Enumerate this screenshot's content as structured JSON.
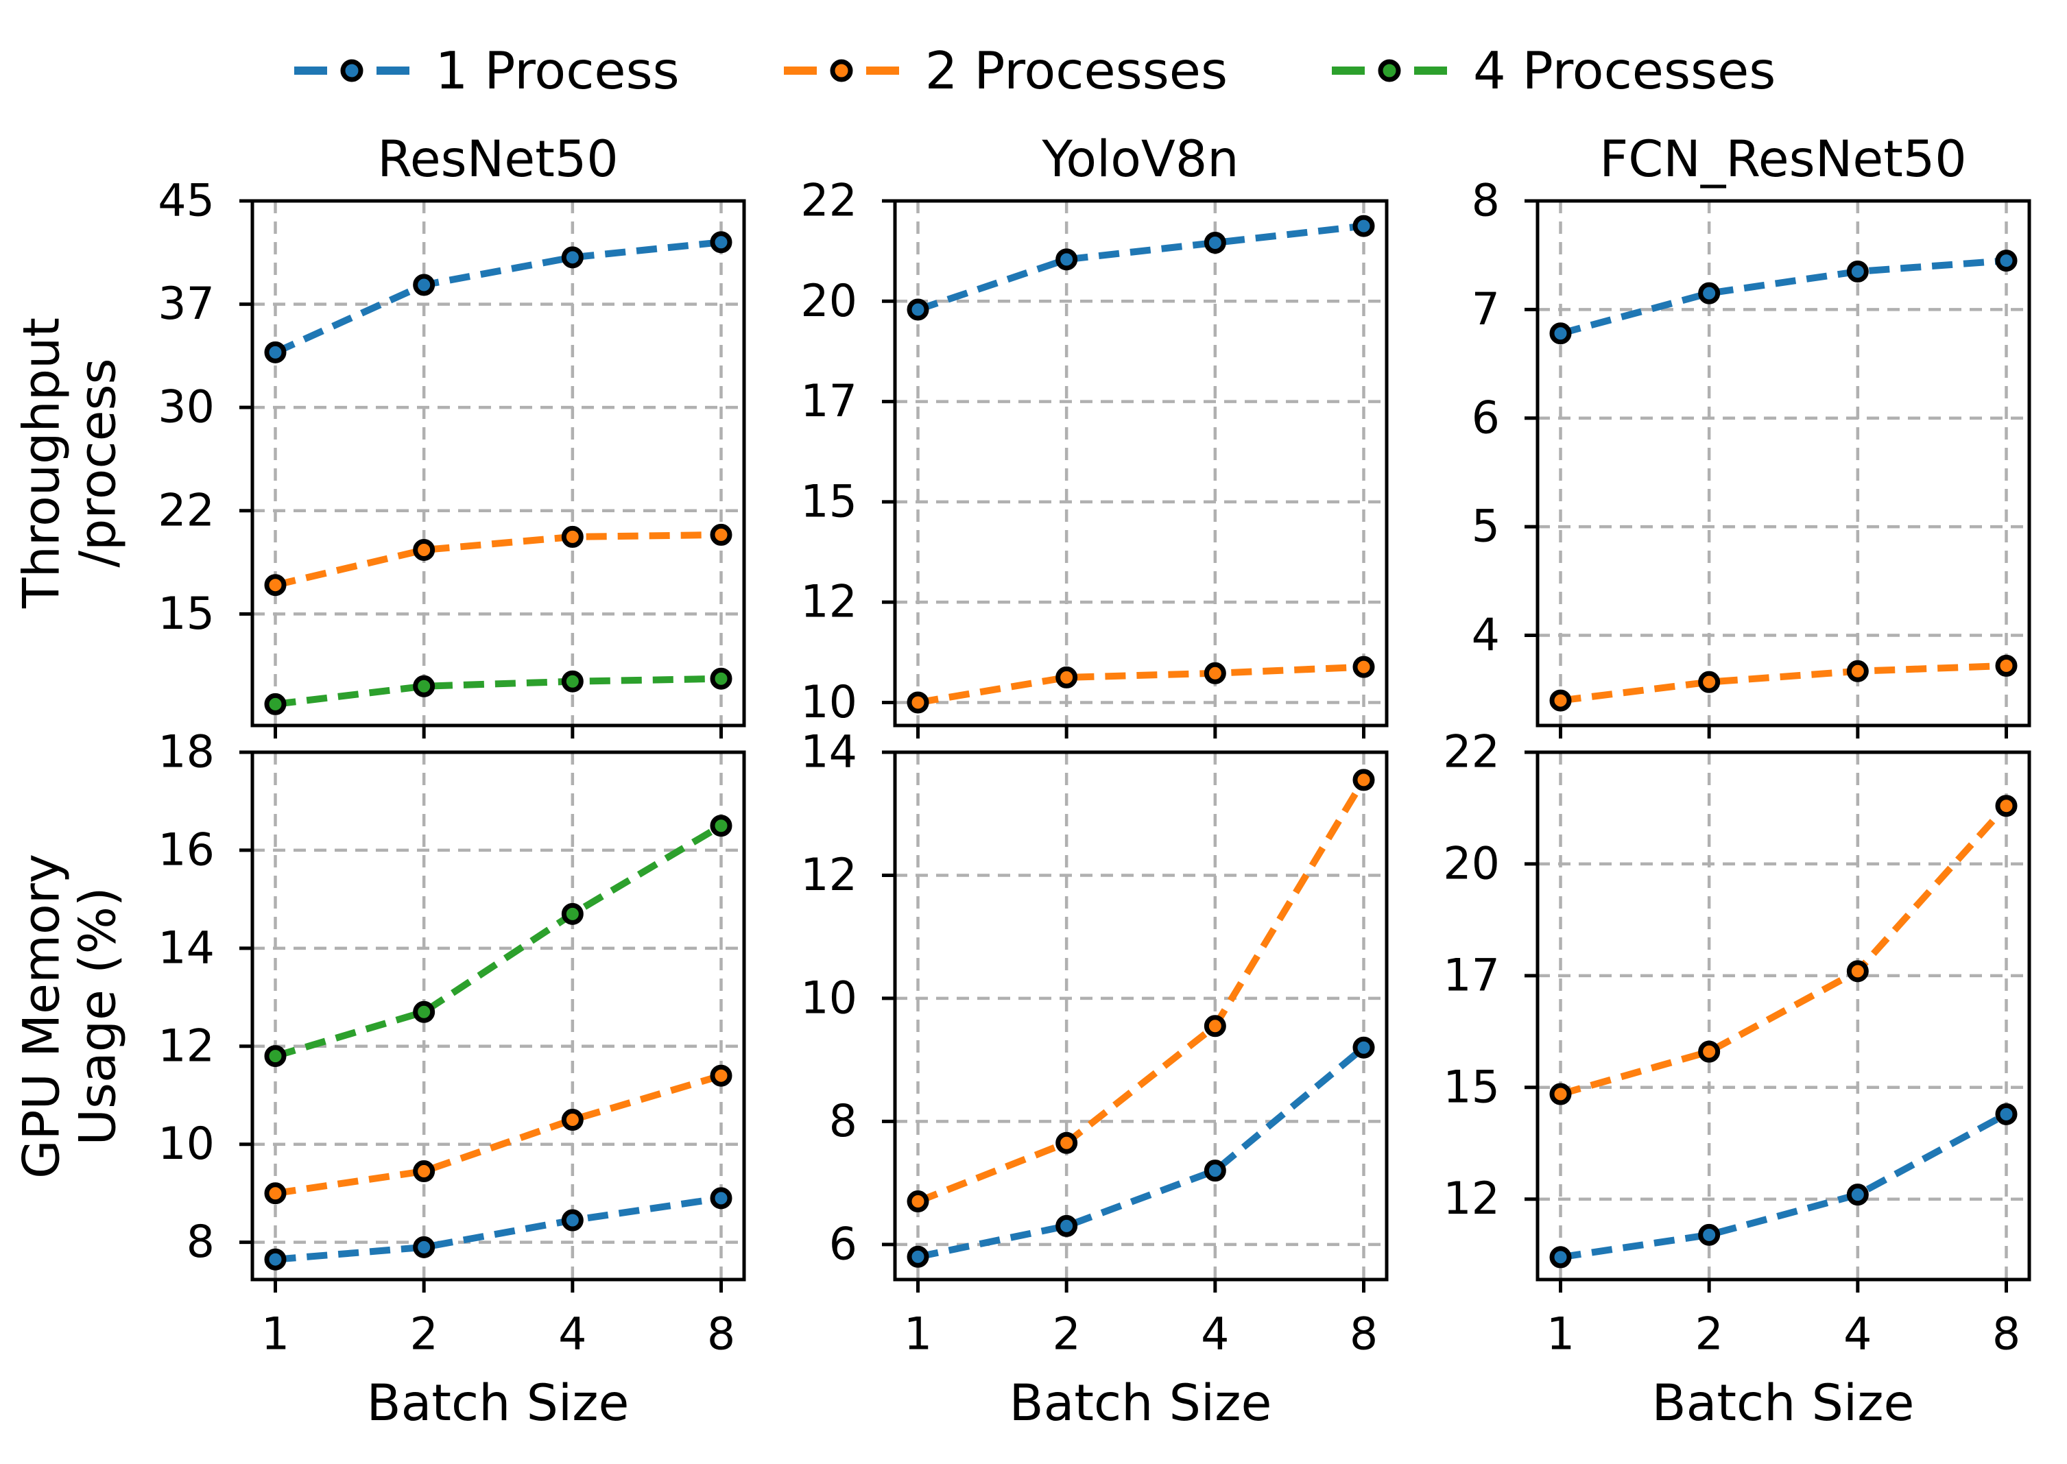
{
  "figure": {
    "background": "#ffffff",
    "text_color": "#000000",
    "grid_color": "#b0b0b0",
    "column_titles": [
      "ResNet50",
      "YoloV8n",
      "FCN_ResNet50"
    ],
    "row_labels": [
      [
        "Throughput",
        "/process"
      ],
      [
        "GPU Memory",
        "Usage (%)"
      ]
    ],
    "xlabel": "Batch Size",
    "x_tick_labels": [
      "1",
      "2",
      "4",
      "8"
    ]
  },
  "legend": {
    "items": [
      {
        "label": "1 Process",
        "color": "#1f77b4"
      },
      {
        "label": "2 Processes",
        "color": "#ff7f0e"
      },
      {
        "label": "4 Processes",
        "color": "#2ca02c"
      }
    ]
  },
  "chart_data": [
    {
      "id": "throughput-resnet50",
      "type": "line",
      "row": 0,
      "col": 0,
      "title": "ResNet50",
      "ylabel": "Throughput /process",
      "xlabel": "",
      "x_categories": [
        1,
        2,
        4,
        8
      ],
      "x_scale": "log2",
      "grid": true,
      "ylim": [
        6.9,
        45
      ],
      "yticks": [
        {
          "label": "45",
          "value": 45
        },
        {
          "label": "37",
          "value": 37.5
        },
        {
          "label": "30",
          "value": 30
        },
        {
          "label": "22",
          "value": 22.5
        },
        {
          "label": "15",
          "value": 15
        }
      ],
      "series": [
        {
          "name": "1 Process",
          "color": "#1f77b4",
          "values": [
            34.0,
            38.9,
            40.9,
            42.0
          ]
        },
        {
          "name": "2 Processes",
          "color": "#ff7f0e",
          "values": [
            17.1,
            19.65,
            20.6,
            20.75
          ]
        },
        {
          "name": "4 Processes",
          "color": "#2ca02c",
          "values": [
            8.45,
            9.75,
            10.1,
            10.3
          ]
        }
      ]
    },
    {
      "id": "throughput-yolov8n",
      "type": "line",
      "row": 0,
      "col": 1,
      "title": "YoloV8n",
      "ylabel": "Throughput /process",
      "xlabel": "",
      "x_categories": [
        1,
        2,
        4,
        8
      ],
      "x_scale": "log2",
      "grid": true,
      "ylim": [
        9.45,
        22
      ],
      "yticks": [
        {
          "label": "22",
          "value": 22
        },
        {
          "label": "20",
          "value": 19.6
        },
        {
          "label": "17",
          "value": 17.2
        },
        {
          "label": "15",
          "value": 14.8
        },
        {
          "label": "12",
          "value": 12.4
        },
        {
          "label": "10",
          "value": 10
        }
      ],
      "series": [
        {
          "name": "1 Process",
          "color": "#1f77b4",
          "values": [
            19.4,
            20.6,
            21.0,
            21.4
          ]
        },
        {
          "name": "2 Processes",
          "color": "#ff7f0e",
          "values": [
            10.0,
            10.6,
            10.7,
            10.85
          ]
        }
      ]
    },
    {
      "id": "throughput-fcn-resnet50",
      "type": "line",
      "row": 0,
      "col": 2,
      "title": "FCN_ResNet50",
      "ylabel": "Throughput /process",
      "xlabel": "",
      "x_categories": [
        1,
        2,
        4,
        8
      ],
      "x_scale": "log2",
      "grid": true,
      "ylim": [
        3.17,
        8
      ],
      "yticks": [
        {
          "label": "8",
          "value": 8
        },
        {
          "label": "7",
          "value": 7
        },
        {
          "label": "6",
          "value": 6
        },
        {
          "label": "5",
          "value": 5
        },
        {
          "label": "4",
          "value": 4
        }
      ],
      "series": [
        {
          "name": "1 Process",
          "color": "#1f77b4",
          "values": [
            6.78,
            7.15,
            7.35,
            7.45
          ]
        },
        {
          "name": "2 Processes",
          "color": "#ff7f0e",
          "values": [
            3.4,
            3.57,
            3.67,
            3.72
          ]
        }
      ]
    },
    {
      "id": "gpu-memory-resnet50",
      "type": "line",
      "row": 1,
      "col": 0,
      "title": "",
      "ylabel": "GPU Memory Usage (%)",
      "xlabel": "Batch Size",
      "x_categories": [
        1,
        2,
        4,
        8
      ],
      "x_scale": "log2",
      "grid": true,
      "ylim": [
        7.24,
        18
      ],
      "yticks": [
        {
          "label": "18",
          "value": 18
        },
        {
          "label": "16",
          "value": 16
        },
        {
          "label": "14",
          "value": 14
        },
        {
          "label": "12",
          "value": 12
        },
        {
          "label": "10",
          "value": 10
        },
        {
          "label": "8",
          "value": 8
        }
      ],
      "series": [
        {
          "name": "1 Process",
          "color": "#1f77b4",
          "values": [
            7.65,
            7.9,
            8.45,
            8.9
          ]
        },
        {
          "name": "2 Processes",
          "color": "#ff7f0e",
          "values": [
            9.0,
            9.45,
            10.5,
            11.4
          ]
        },
        {
          "name": "4 Processes",
          "color": "#2ca02c",
          "values": [
            11.8,
            12.7,
            14.7,
            16.5
          ]
        }
      ]
    },
    {
      "id": "gpu-memory-yolov8n",
      "type": "line",
      "row": 1,
      "col": 1,
      "title": "",
      "ylabel": "GPU Memory Usage (%)",
      "xlabel": "Batch Size",
      "x_categories": [
        1,
        2,
        4,
        8
      ],
      "x_scale": "log2",
      "grid": true,
      "ylim": [
        5.43,
        14
      ],
      "yticks": [
        {
          "label": "14",
          "value": 14
        },
        {
          "label": "12",
          "value": 12
        },
        {
          "label": "10",
          "value": 10
        },
        {
          "label": "8",
          "value": 8
        },
        {
          "label": "6",
          "value": 6
        }
      ],
      "series": [
        {
          "name": "1 Process",
          "color": "#1f77b4",
          "values": [
            5.8,
            6.3,
            7.2,
            9.2
          ]
        },
        {
          "name": "2 Processes",
          "color": "#ff7f0e",
          "values": [
            6.7,
            7.65,
            9.55,
            13.55
          ]
        }
      ]
    },
    {
      "id": "gpu-memory-fcn-resnet50",
      "type": "line",
      "row": 1,
      "col": 2,
      "title": "",
      "ylabel": "GPU Memory Usage (%)",
      "xlabel": "Batch Size",
      "x_categories": [
        1,
        2,
        4,
        8
      ],
      "x_scale": "log2",
      "grid": true,
      "ylim": [
        10.2,
        22
      ],
      "yticks": [
        {
          "label": "22",
          "value": 22
        },
        {
          "label": "20",
          "value": 19.5
        },
        {
          "label": "17",
          "value": 17
        },
        {
          "label": "15",
          "value": 14.5
        },
        {
          "label": "12",
          "value": 12
        }
      ],
      "series": [
        {
          "name": "1 Process",
          "color": "#1f77b4",
          "values": [
            10.7,
            11.2,
            12.1,
            13.9
          ]
        },
        {
          "name": "2 Processes",
          "color": "#ff7f0e",
          "values": [
            14.35,
            15.3,
            17.1,
            20.8
          ]
        }
      ]
    }
  ]
}
